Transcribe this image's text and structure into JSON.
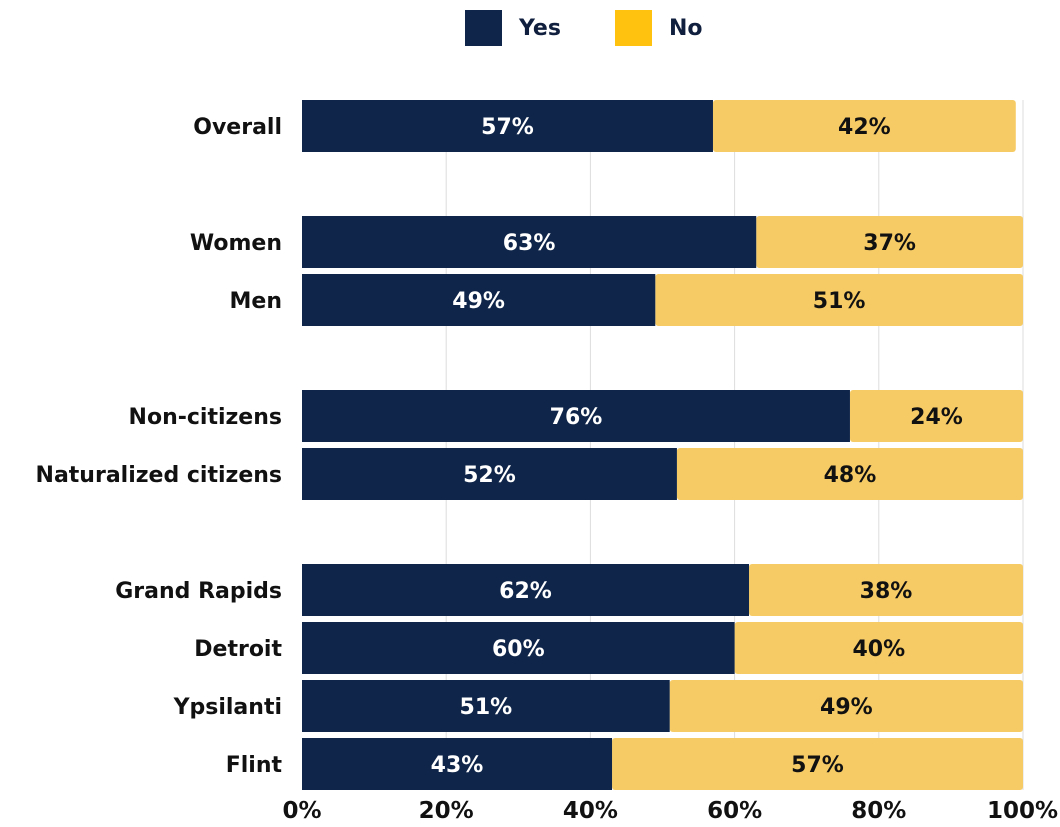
{
  "legend": [
    {
      "label": "Yes",
      "color": "#0f2549"
    },
    {
      "label": "No",
      "color": "#ffc20e"
    }
  ],
  "chart_data": {
    "type": "bar",
    "orientation": "horizontal",
    "stacked": true,
    "categories": [
      "Overall",
      "Women",
      "Men",
      "Non-citizens",
      "Naturalized citizens",
      "Grand Rapids",
      "Detroit",
      "Ypsilanti",
      "Flint"
    ],
    "series": [
      {
        "name": "Yes",
        "color": "#0f2549",
        "values": [
          57,
          63,
          49,
          76,
          52,
          62,
          60,
          51,
          43
        ],
        "labels": [
          "57%",
          "63%",
          "49%",
          "76%",
          "52%",
          "62%",
          "60%",
          "51%",
          "43%"
        ]
      },
      {
        "name": "No",
        "color": "#f6cb66",
        "values": [
          42,
          37,
          51,
          24,
          48,
          38,
          40,
          49,
          57
        ],
        "labels": [
          "42%",
          "37%",
          "51%",
          "24%",
          "48%",
          "38%",
          "40%",
          "49%",
          "57%"
        ]
      }
    ],
    "xlim": [
      0,
      100
    ],
    "xticks": [
      "0%",
      "20%",
      "40%",
      "60%",
      "80%",
      "100%"
    ],
    "grid": "vertical",
    "legend_position": "top-center"
  }
}
